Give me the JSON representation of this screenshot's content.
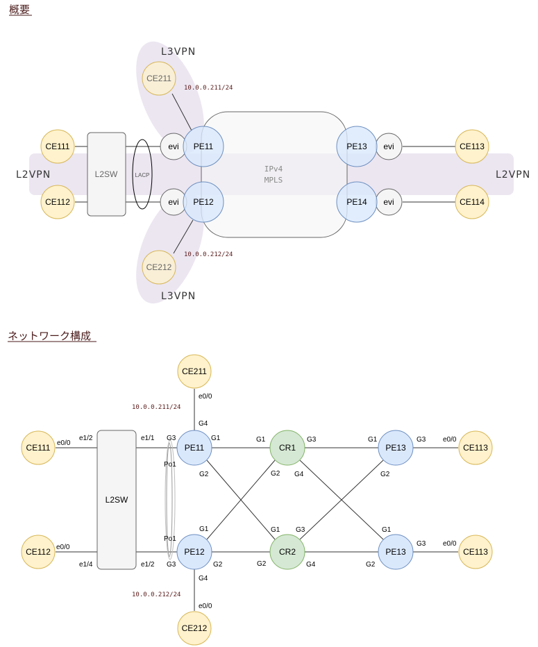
{
  "sections": {
    "overview_title": "概要",
    "network_title": "ネットワーク構成"
  },
  "overview": {
    "l3vpn_top": "L3VPN",
    "l3vpn_bottom": "L3VPN",
    "l2vpn_left": "L2VPN",
    "l2vpn_right": "L2VPN",
    "ce211": "CE211",
    "ce212": "CE212",
    "ce111": "CE111",
    "ce112": "CE112",
    "ce113": "CE113",
    "ce114": "CE114",
    "l2sw": "L2SW",
    "lacp": "LACP",
    "evi": "evi",
    "pe11": "PE11",
    "pe12": "PE12",
    "pe13": "PE13",
    "pe14": "PE14",
    "addr_211": "10.0.0.211/24",
    "addr_212": "10.0.0.212/24",
    "core_l1": "IPv4",
    "core_l2": "MPLS"
  },
  "network": {
    "ce211": "CE211",
    "ce212": "CE212",
    "ce111": "CE111",
    "ce112": "CE112",
    "ce113_top": "CE113",
    "ce113_bottom": "CE113",
    "l2sw": "L2SW",
    "pe11": "PE11",
    "pe12": "PE12",
    "cr1": "CR1",
    "cr2": "CR2",
    "pe13_top": "PE13",
    "pe13_bottom": "PE13",
    "addr_211": "10.0.0.211/24",
    "addr_212": "10.0.0.212/24",
    "ports": {
      "ce211_e00": "e0/0",
      "pe11_g4": "G4",
      "ce111_e00": "e0/0",
      "l2sw_e12_left": "e1/2",
      "l2sw_e11": "e1/1",
      "pe11_g3": "G3",
      "pe11_g1": "G1",
      "pe11_g2": "G2",
      "po1_top": "Po1",
      "cr1_g1": "G1",
      "cr1_g3": "G3",
      "cr1_g2": "G2",
      "cr1_g4": "G4",
      "pe13t_g1": "G1",
      "pe13t_g3": "G3",
      "pe13t_g2": "G2",
      "ce113t_e00": "e0/0",
      "pe12_g1": "G1",
      "po1_bottom": "Po1",
      "cr2_g1": "G1",
      "cr2_g3": "G3",
      "pe13b_g1": "G1",
      "ce112_e00": "e0/0",
      "l2sw_e14": "e1/4",
      "l2sw_e12_right": "e1/2",
      "pe12_g3": "G3",
      "pe12_g2": "G2",
      "cr2_g2": "G2",
      "cr2_g4": "G4",
      "pe13b_g2": "G2",
      "pe13b_g3": "G3",
      "ce113b_e00": "e0/0",
      "pe12_g4": "G4",
      "ce212_e00": "e0/0"
    }
  },
  "colors": {
    "ce_fill": "#fff2cc",
    "ce_stroke": "#d6b656",
    "pe_fill": "#dae8fc",
    "pe_stroke": "#6c8ebf",
    "cr_fill": "#d5e8d4",
    "cr_stroke": "#82b366",
    "vpn_band": "#e9e2ef"
  }
}
